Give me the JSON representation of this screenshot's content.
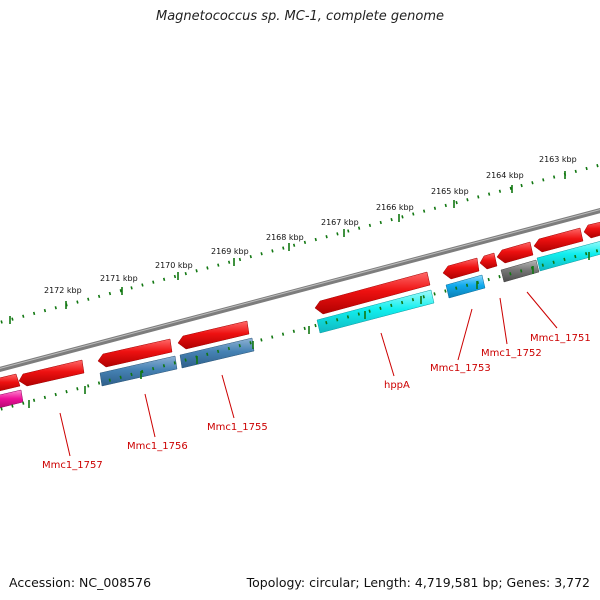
{
  "title": "Magnetococcus sp. MC-1, complete genome",
  "footer": {
    "accession": "Accession: NC_008576",
    "summary": "Topology: circular; Length: 4,719,581 bp; Genes: 3,772"
  },
  "scale_labels": [
    "2163 kbp",
    "2164 kbp",
    "2165 kbp",
    "2166 kbp",
    "2167 kbp",
    "2168 kbp",
    "2169 kbp",
    "2170 kbp",
    "2171 kbp",
    "2172 kbp"
  ],
  "gene_labels": [
    "Mmc1_1751",
    "Mmc1_1752",
    "Mmc1_1753",
    "hppA",
    "Mmc1_1755",
    "Mmc1_1756",
    "Mmc1_1757"
  ],
  "colors": {
    "forward_gene": "#ee1111",
    "cds_cyan": "#11eeee",
    "cds_steelblue": "#4682b4",
    "cds_skyblue": "#11aaee",
    "cds_magenta": "#ee1199",
    "cds_gray": "#777777",
    "backbone": "#808080",
    "ticks": "#117711",
    "label": "#cc0000"
  }
}
